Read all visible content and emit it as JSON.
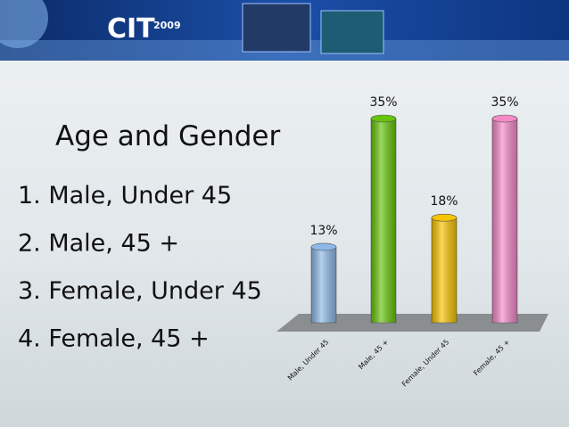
{
  "header": {
    "logo": "CIT",
    "logo_year": "2009"
  },
  "chart_data": {
    "type": "bar",
    "title": "Age and Gender",
    "items": [
      "1. Male, Under 45",
      "2. Male, 45 +",
      "3. Female, Under 45",
      "4. Female, 45 +"
    ],
    "categories": [
      "Male, Under 45",
      "Male, 45 +",
      "Female, Under 45",
      "Female, 45 +"
    ],
    "values": [
      13,
      35,
      18,
      35
    ],
    "value_labels": [
      "13%",
      "35%",
      "18%",
      "35%"
    ],
    "colors": [
      "#8db9e8",
      "#66c40a",
      "#f6c400",
      "#f58ac8"
    ]
  }
}
